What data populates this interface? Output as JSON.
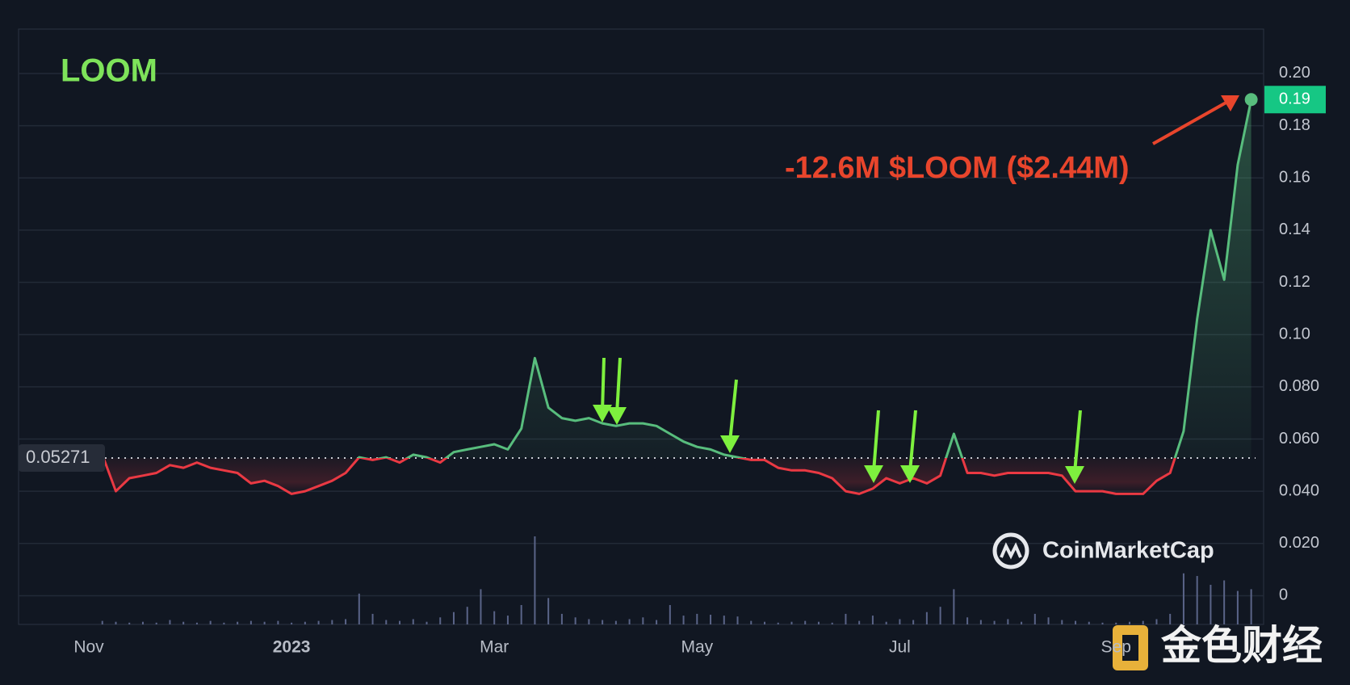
{
  "chart_data": {
    "type": "line",
    "title": "LOOM",
    "annotation": "-12.6M $LOOM ($2.44M)",
    "watermark": "CoinMarketCap",
    "source_watermark": "金色财经",
    "categories": [
      "Nov",
      null,
      null,
      null,
      null,
      null,
      null,
      null,
      null,
      null,
      null,
      null,
      null,
      null,
      null,
      "2023",
      null,
      null,
      null,
      null,
      null,
      null,
      null,
      null,
      null,
      null,
      null,
      null,
      null,
      null,
      "Mar",
      null,
      null,
      null,
      null,
      null,
      null,
      null,
      null,
      null,
      null,
      null,
      null,
      null,
      null,
      "May",
      null,
      null,
      null,
      null,
      null,
      null,
      null,
      null,
      null,
      null,
      null,
      null,
      null,
      null,
      "Jul",
      null,
      null,
      null,
      null,
      null,
      null,
      null,
      null,
      null,
      null,
      null,
      null,
      null,
      null,
      null,
      "Sep",
      null,
      null,
      null,
      null,
      null,
      null,
      null,
      null,
      null,
      null
    ],
    "values": [
      null,
      0.054,
      0.04,
      0.045,
      0.046,
      0.047,
      0.05,
      0.049,
      0.051,
      0.049,
      0.048,
      0.047,
      0.043,
      0.044,
      0.042,
      0.039,
      0.04,
      0.042,
      0.044,
      0.047,
      0.053,
      0.052,
      0.053,
      0.051,
      0.054,
      0.053,
      0.051,
      0.055,
      0.056,
      0.057,
      0.058,
      0.056,
      0.064,
      0.091,
      0.072,
      0.068,
      0.067,
      0.068,
      0.066,
      0.065,
      0.066,
      0.066,
      0.065,
      0.062,
      0.059,
      0.057,
      0.056,
      0.054,
      0.053,
      0.052,
      0.052,
      0.049,
      0.048,
      0.048,
      0.047,
      0.045,
      0.04,
      0.039,
      0.041,
      0.045,
      0.043,
      0.045,
      0.043,
      0.046,
      0.062,
      0.047,
      0.047,
      0.046,
      0.047,
      0.047,
      0.047,
      0.047,
      0.046,
      0.04,
      0.04,
      0.04,
      0.039,
      0.039,
      0.039,
      0.044,
      0.047,
      0.063,
      0.106,
      0.14,
      0.121,
      0.165,
      0.19
    ],
    "volume": [
      null,
      4,
      3,
      2,
      3,
      2,
      5,
      3,
      2,
      4,
      2,
      3,
      4,
      3,
      4,
      2,
      3,
      4,
      5,
      6,
      35,
      12,
      5,
      4,
      6,
      3,
      8,
      14,
      20,
      40,
      15,
      10,
      22,
      100,
      30,
      12,
      8,
      6,
      5,
      4,
      6,
      8,
      5,
      22,
      10,
      12,
      11,
      10,
      9,
      4,
      3,
      2,
      3,
      4,
      3,
      2,
      12,
      4,
      10,
      3,
      6,
      5,
      14,
      20,
      40,
      8,
      5,
      4,
      6,
      3,
      12,
      8,
      5,
      4,
      3,
      2,
      2,
      3,
      4,
      6,
      12,
      58,
      55,
      45,
      50,
      38,
      40
    ],
    "baseline": 0.05271,
    "up_color": "#58bd7d",
    "down_color": "#ea3943",
    "volume_color": "#5a6488",
    "ylim": [
      -0.011,
      0.217
    ],
    "yticks": [
      0,
      {
        "value": 0.02,
        "label": "0.020"
      },
      {
        "value": 0.04,
        "label": "0.040"
      },
      {
        "value": 0.06,
        "label": "0.060"
      },
      {
        "value": 0.08,
        "label": "0.080"
      },
      {
        "value": 0.1,
        "label": "0.10"
      },
      0.12,
      0.14,
      0.16,
      0.18,
      {
        "value": 0.2,
        "label": "0.20"
      }
    ],
    "grid": true
  }
}
